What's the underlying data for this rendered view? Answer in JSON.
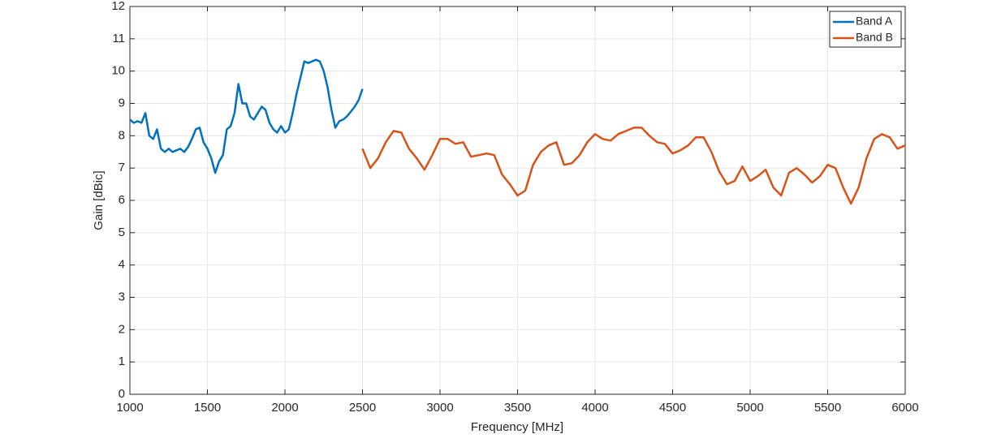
{
  "chart_data": {
    "type": "line",
    "xlabel": "Frequency [MHz]",
    "ylabel": "Gain [dBic]",
    "xlim": [
      1000,
      6000
    ],
    "ylim": [
      0,
      12
    ],
    "xticks": [
      1000,
      1500,
      2000,
      2500,
      3000,
      3500,
      4000,
      4500,
      5000,
      5500,
      6000
    ],
    "yticks": [
      0,
      1,
      2,
      3,
      4,
      5,
      6,
      7,
      8,
      9,
      10,
      11,
      12
    ],
    "grid": true,
    "legend": "northeast",
    "series": [
      {
        "name": "Band A",
        "color": "#0072bd",
        "x": [
          1000,
          1025,
          1050,
          1075,
          1100,
          1125,
          1150,
          1175,
          1200,
          1225,
          1250,
          1275,
          1300,
          1325,
          1350,
          1375,
          1400,
          1425,
          1450,
          1475,
          1500,
          1525,
          1550,
          1575,
          1600,
          1625,
          1650,
          1675,
          1700,
          1725,
          1750,
          1775,
          1800,
          1825,
          1850,
          1875,
          1900,
          1925,
          1950,
          1975,
          2000,
          2025,
          2050,
          2075,
          2100,
          2125,
          2150,
          2175,
          2200,
          2225,
          2250,
          2275,
          2300,
          2325,
          2350,
          2375,
          2400,
          2425,
          2450,
          2475,
          2500
        ],
        "values": [
          8.5,
          8.4,
          8.45,
          8.4,
          8.7,
          8.0,
          7.9,
          8.2,
          7.6,
          7.5,
          7.6,
          7.5,
          7.55,
          7.6,
          7.5,
          7.65,
          7.9,
          8.2,
          8.25,
          7.8,
          7.6,
          7.3,
          6.85,
          7.2,
          7.4,
          8.2,
          8.3,
          8.7,
          9.6,
          9.0,
          9.0,
          8.6,
          8.5,
          8.7,
          8.9,
          8.8,
          8.4,
          8.2,
          8.1,
          8.3,
          8.1,
          8.2,
          8.7,
          9.3,
          9.8,
          10.3,
          10.25,
          10.3,
          10.35,
          10.3,
          10.0,
          9.5,
          8.8,
          8.25,
          8.45,
          8.5,
          8.6,
          8.75,
          8.9,
          9.1,
          9.45
        ]
      },
      {
        "name": "Band B",
        "color": "#d95319",
        "x": [
          2500,
          2550,
          2600,
          2650,
          2700,
          2750,
          2800,
          2850,
          2900,
          2950,
          3000,
          3050,
          3100,
          3150,
          3200,
          3250,
          3300,
          3350,
          3400,
          3450,
          3500,
          3550,
          3600,
          3650,
          3700,
          3750,
          3800,
          3850,
          3900,
          3950,
          4000,
          4050,
          4100,
          4150,
          4200,
          4250,
          4300,
          4350,
          4400,
          4450,
          4500,
          4550,
          4600,
          4650,
          4700,
          4750,
          4800,
          4850,
          4900,
          4950,
          5000,
          5050,
          5100,
          5150,
          5200,
          5250,
          5300,
          5350,
          5400,
          5450,
          5500,
          5550,
          5600,
          5650,
          5700,
          5750,
          5800,
          5850,
          5900,
          5950,
          6000
        ],
        "values": [
          7.6,
          7.0,
          7.3,
          7.8,
          8.15,
          8.1,
          7.6,
          7.3,
          6.95,
          7.4,
          7.9,
          7.9,
          7.75,
          7.8,
          7.35,
          7.4,
          7.45,
          7.4,
          6.8,
          6.5,
          6.15,
          6.3,
          7.1,
          7.5,
          7.7,
          7.8,
          7.1,
          7.15,
          7.4,
          7.8,
          8.05,
          7.9,
          7.85,
          8.05,
          8.15,
          8.25,
          8.25,
          8.0,
          7.8,
          7.75,
          7.45,
          7.55,
          7.7,
          7.95,
          7.95,
          7.5,
          6.9,
          6.5,
          6.6,
          7.05,
          6.6,
          6.75,
          6.95,
          6.4,
          6.15,
          6.85,
          7.0,
          6.8,
          6.55,
          6.75,
          7.1,
          7.0,
          6.4,
          5.9,
          6.4,
          7.3,
          7.9,
          8.05,
          7.95,
          7.6,
          7.7
        ]
      }
    ]
  }
}
